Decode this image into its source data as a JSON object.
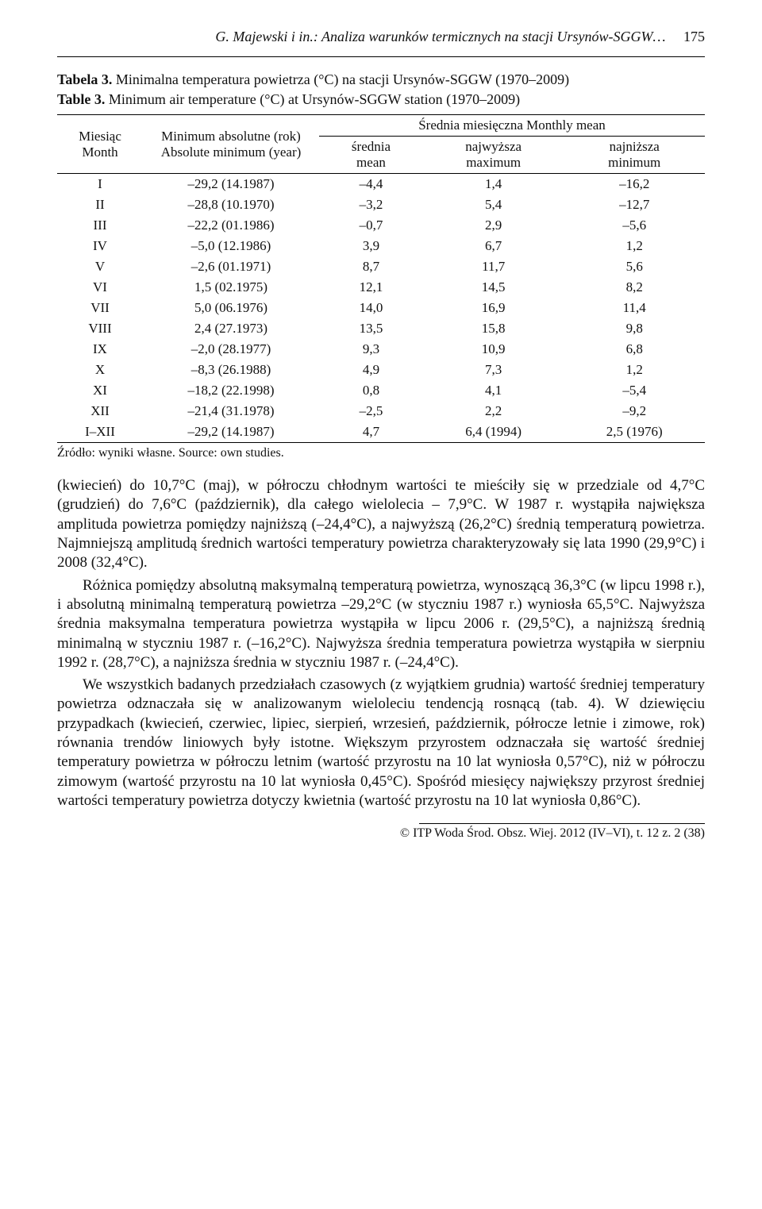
{
  "running_head": {
    "left": "G. Majewski i in.: Analiza warunków termicznych na stacji Ursynów-SGGW…",
    "page": "175"
  },
  "table_caption": {
    "pl_label": "Tabela 3.",
    "pl_text": " Minimalna temperatura powietrza (°C) na stacji Ursynów-SGGW (1970–2009)",
    "en_label": "Table 3.",
    "en_text": " Minimum air temperature (°C) at Ursynów-SGGW station (1970–2009)"
  },
  "table": {
    "head": {
      "col1_line1": "Miesiąc",
      "col1_line2": "Month",
      "col2_line1": "Minimum absolutne (rok)",
      "col2_line2": "Absolute minimum (year)",
      "group": "Średnia miesięczna  Monthly mean",
      "sub_mean_l1": "średnia",
      "sub_mean_l2": "mean",
      "sub_max_l1": "najwyższa",
      "sub_max_l2": "maximum",
      "sub_min_l1": "najniższa",
      "sub_min_l2": "minimum"
    },
    "rows": [
      {
        "m": "I",
        "abs": "–29,2 (14.1987)",
        "mean": "–4,4",
        "max": "1,4",
        "min": "–16,2"
      },
      {
        "m": "II",
        "abs": "–28,8 (10.1970)",
        "mean": "–3,2",
        "max": "5,4",
        "min": "–12,7"
      },
      {
        "m": "III",
        "abs": "–22,2 (01.1986)",
        "mean": "–0,7",
        "max": "2,9",
        "min": "–5,6"
      },
      {
        "m": "IV",
        "abs": "–5,0 (12.1986)",
        "mean": "3,9",
        "max": "6,7",
        "min": "1,2"
      },
      {
        "m": "V",
        "abs": "–2,6 (01.1971)",
        "mean": "8,7",
        "max": "11,7",
        "min": "5,6"
      },
      {
        "m": "VI",
        "abs": "1,5 (02.1975)",
        "mean": "12,1",
        "max": "14,5",
        "min": "8,2"
      },
      {
        "m": "VII",
        "abs": "5,0 (06.1976)",
        "mean": "14,0",
        "max": "16,9",
        "min": "11,4"
      },
      {
        "m": "VIII",
        "abs": "2,4 (27.1973)",
        "mean": "13,5",
        "max": "15,8",
        "min": "9,8"
      },
      {
        "m": "IX",
        "abs": "–2,0 (28.1977)",
        "mean": "9,3",
        "max": "10,9",
        "min": "6,8"
      },
      {
        "m": "X",
        "abs": "–8,3 (26.1988)",
        "mean": "4,9",
        "max": "7,3",
        "min": "1,2"
      },
      {
        "m": "XI",
        "abs": "–18,2 (22.1998)",
        "mean": "0,8",
        "max": "4,1",
        "min": "–5,4"
      },
      {
        "m": "XII",
        "abs": "–21,4 (31.1978)",
        "mean": "–2,5",
        "max": "2,2",
        "min": "–9,2"
      },
      {
        "m": "I–XII",
        "abs": "–29,2 (14.1987)",
        "mean": "4,7",
        "max": "6,4 (1994)",
        "min": "2,5 (1976)"
      }
    ]
  },
  "source_line": "Źródło: wyniki własne.   Source: own studies.",
  "paragraphs": [
    "(kwiecień) do 10,7°C (maj), w półroczu chłodnym wartości te mieściły się w przedziale od 4,7°C (grudzień) do 7,6°C (październik), dla całego wielolecia – 7,9°C. W 1987 r. wystąpiła największa amplituda powietrza pomiędzy najniższą (–24,4°C), a najwyższą (26,2°C) średnią temperaturą powietrza. Najmniejszą amplitudą średnich wartości temperatury powietrza charakteryzowały się lata 1990 (29,9°C) i 2008 (32,4°C).",
    "Różnica pomiędzy absolutną maksymalną temperaturą powietrza, wynoszącą 36,3°C (w lipcu 1998 r.), i absolutną minimalną temperaturą powietrza –29,2°C (w styczniu 1987 r.) wyniosła 65,5°C. Najwyższa średnia maksymalna temperatura powietrza wystąpiła w lipcu 2006 r. (29,5°C), a najniższą średnią minimalną w styczniu 1987 r. (–16,2°C). Najwyższa średnia temperatura powietrza wystąpiła w sierpniu 1992 r. (28,7°C), a najniższa średnia w styczniu 1987 r. (–24,4°C).",
    "We wszystkich badanych przedziałach czasowych (z wyjątkiem grudnia) wartość średniej temperatury powietrza odznaczała się w analizowanym wieloleciu tendencją rosnącą (tab. 4). W dziewięciu przypadkach (kwiecień, czerwiec, lipiec, sierpień, wrzesień, październik, półrocze letnie i zimowe, rok) równania trendów liniowych były istotne. Większym przyrostem odznaczała się wartość średniej temperatury powietrza w półroczu letnim (wartość przyrostu na 10 lat wyniosła 0,57°C), niż w półroczu zimowym (wartość przyrostu na 10 lat wyniosła 0,45°C). Spośród miesięcy największy przyrost średniej wartości temperatury powietrza dotyczy kwietnia (wartość przyrostu na 10 lat wyniosła 0,86°C)."
  ],
  "footer": "© ITP Woda Środ. Obsz. Wiej. 2012 (IV–VI), t. 12 z. 2 (38)"
}
